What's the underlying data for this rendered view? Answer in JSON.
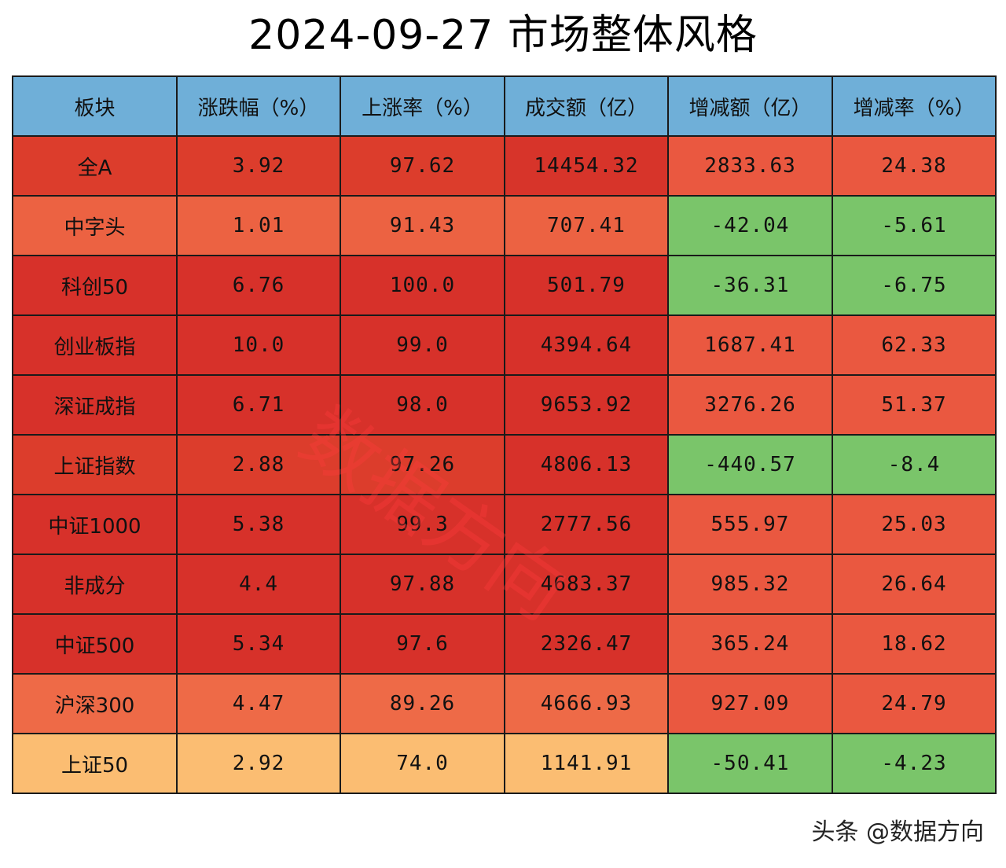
{
  "page": {
    "title": "2024-09-27 市场整体风格",
    "watermark": "数据方向",
    "credit": "头条 @数据方向"
  },
  "chart_data": {
    "type": "table",
    "title": "2024-09-27 市场整体风格",
    "columns": [
      "板块",
      "涨跌幅（%）",
      "上涨率（%）",
      "成交额（亿）",
      "增减额（亿）",
      "增减率（%）"
    ],
    "header_color": "#6fafd8",
    "rows": [
      {
        "cells": [
          "全A",
          "3.92",
          "97.62",
          "14454.32",
          "2833.63",
          "24.38"
        ],
        "colors": [
          "#dc3d2c",
          "#dc3d2c",
          "#dc3d2c",
          "#d7342a",
          "#ea5840",
          "#ea5840"
        ]
      },
      {
        "cells": [
          "中字头",
          "1.01",
          "91.43",
          "707.41",
          "-42.04",
          "-5.61"
        ],
        "colors": [
          "#ec6242",
          "#ec6242",
          "#ec6242",
          "#ec6242",
          "#7ac56a",
          "#7ac56a"
        ]
      },
      {
        "cells": [
          "科创50",
          "6.76",
          "100.0",
          "501.79",
          "-36.31",
          "-6.75"
        ],
        "colors": [
          "#d7312a",
          "#d7312a",
          "#d7312a",
          "#d7312a",
          "#7ac56a",
          "#7ac56a"
        ]
      },
      {
        "cells": [
          "创业板指",
          "10.0",
          "99.0",
          "4394.64",
          "1687.41",
          "62.33"
        ],
        "colors": [
          "#d7312a",
          "#d7312a",
          "#d7312a",
          "#d7312a",
          "#ea5840",
          "#ea5840"
        ]
      },
      {
        "cells": [
          "深证成指",
          "6.71",
          "98.0",
          "9653.92",
          "3276.26",
          "51.37"
        ],
        "colors": [
          "#d7312a",
          "#d7312a",
          "#d7312a",
          "#d7312a",
          "#ea5840",
          "#ea5840"
        ]
      },
      {
        "cells": [
          "上证指数",
          "2.88",
          "97.26",
          "4806.13",
          "-440.57",
          "-8.4"
        ],
        "colors": [
          "#dc3d2c",
          "#dc3d2c",
          "#dc3d2c",
          "#d7312a",
          "#7ac56a",
          "#7ac56a"
        ]
      },
      {
        "cells": [
          "中证1000",
          "5.38",
          "99.3",
          "2777.56",
          "555.97",
          "25.03"
        ],
        "colors": [
          "#d7312a",
          "#d7312a",
          "#d7312a",
          "#d7312a",
          "#ea5840",
          "#ea5840"
        ]
      },
      {
        "cells": [
          "非成分",
          "4.4",
          "97.88",
          "4683.37",
          "985.32",
          "26.64"
        ],
        "colors": [
          "#d7312a",
          "#d7312a",
          "#d7312a",
          "#d7312a",
          "#ea5840",
          "#ea5840"
        ]
      },
      {
        "cells": [
          "中证500",
          "5.34",
          "97.6",
          "2326.47",
          "365.24",
          "18.62"
        ],
        "colors": [
          "#d7312a",
          "#d7312a",
          "#d7312a",
          "#d7312a",
          "#ea5840",
          "#ea5840"
        ]
      },
      {
        "cells": [
          "沪深300",
          "4.47",
          "89.26",
          "4666.93",
          "927.09",
          "24.79"
        ],
        "colors": [
          "#ee6a47",
          "#ee6a47",
          "#ee6a47",
          "#ee6a47",
          "#ea5840",
          "#ea5840"
        ]
      },
      {
        "cells": [
          "上证50",
          "2.92",
          "74.0",
          "1141.91",
          "-50.41",
          "-4.23"
        ],
        "colors": [
          "#fbbd72",
          "#fbbd72",
          "#fbbd72",
          "#fbbd72",
          "#7ac56a",
          "#7ac56a"
        ]
      }
    ]
  }
}
